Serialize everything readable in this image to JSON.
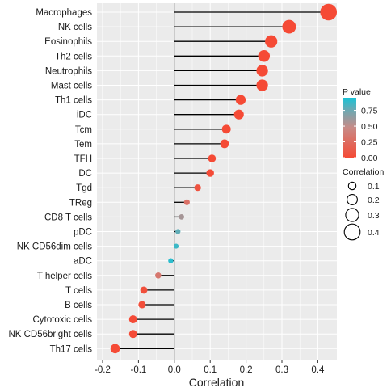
{
  "chart_data": {
    "type": "lollipop",
    "title": "",
    "xlabel": "Correlation",
    "ylabel": "",
    "xlim": [
      -0.2,
      0.45
    ],
    "x_ticks": [
      -0.2,
      -0.1,
      0.0,
      0.1,
      0.2,
      0.3,
      0.4
    ],
    "x_tick_labels": [
      "-0.2",
      "-0.1",
      "0.0",
      "0.1",
      "0.2",
      "0.3",
      "0.4"
    ],
    "grid": true,
    "categories": [
      "Macrophages",
      "NK cells",
      "Eosinophils",
      "Th2 cells",
      "Neutrophils",
      "Mast cells",
      "Th1 cells",
      "iDC",
      "Tcm",
      "Tem",
      "TFH",
      "DC",
      "Tgd",
      "TReg",
      "CD8 T cells",
      "pDC",
      "NK CD56dim cells",
      "aDC",
      "T helper cells",
      "T cells",
      "B cells",
      "Cytotoxic cells",
      "NK CD56bright cells",
      "Th17 cells"
    ],
    "correlation": [
      0.43,
      0.32,
      0.27,
      0.25,
      0.245,
      0.245,
      0.185,
      0.18,
      0.145,
      0.14,
      0.105,
      0.1,
      0.065,
      0.035,
      0.02,
      0.01,
      0.005,
      -0.01,
      -0.045,
      -0.085,
      -0.09,
      -0.115,
      -0.115,
      -0.165
    ],
    "p_value": [
      0.0,
      0.0,
      0.0,
      0.0,
      0.0,
      0.0,
      0.0,
      0.0,
      0.0,
      0.0,
      0.0,
      0.01,
      0.07,
      0.3,
      0.6,
      0.8,
      0.9,
      0.95,
      0.35,
      0.04,
      0.03,
      0.01,
      0.01,
      0.0
    ],
    "legend": {
      "color_title": "P value",
      "color_ticks": [
        0.75,
        0.5,
        0.25,
        0.0
      ],
      "color_tick_labels": [
        "0.75",
        "0.50",
        "0.25",
        "0.00"
      ],
      "color_low": "#f54a35",
      "color_high": "#19c3d6",
      "size_title": "Correlation",
      "size_values": [
        0.1,
        0.2,
        0.3,
        0.4
      ],
      "size_labels": [
        "0.1",
        "0.2",
        "0.3",
        "0.4"
      ],
      "placement": "right"
    },
    "colors": {
      "panel_background": "#ebebeb",
      "grid": "#ffffff",
      "stem": "#000000"
    }
  }
}
